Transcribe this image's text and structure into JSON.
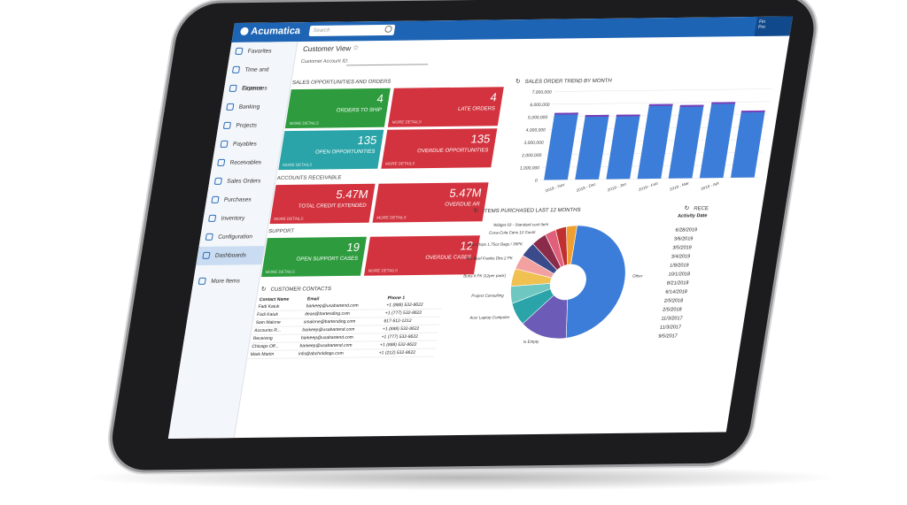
{
  "app": {
    "brand": "Acumatica",
    "search_placeholder": "Search",
    "corner_text_1": "Fin",
    "corner_text_2": "Pro"
  },
  "sidebar": {
    "items": [
      {
        "label": "Favorites"
      },
      {
        "label": "Time and Expenses"
      },
      {
        "label": "Finance"
      },
      {
        "label": "Banking"
      },
      {
        "label": "Projects"
      },
      {
        "label": "Payables"
      },
      {
        "label": "Receivables"
      },
      {
        "label": "Sales Orders"
      },
      {
        "label": "Purchases"
      },
      {
        "label": "Inventory"
      },
      {
        "label": "Configuration"
      },
      {
        "label": "Dashboards"
      },
      {
        "label": "More Items"
      }
    ]
  },
  "page": {
    "title": "Customer View",
    "account_label": "Customer Account ID:"
  },
  "sections": {
    "sales": "SALES OPPORTUNITIES AND ORDERS",
    "ar": "ACCOUNTS RECEIVABLE",
    "support": "SUPPORT",
    "contacts": "CUSTOMER CONTACTS",
    "trend": "SALES ORDER TREND BY MONTH",
    "items": "ITEMS PURCHASED LAST 12 MONTHS",
    "recent": "RECE"
  },
  "tiles": {
    "orders_to_ship": {
      "value": "4",
      "label": "ORDERS TO SHIP",
      "more": "MORE DETAILS"
    },
    "late_orders": {
      "value": "4",
      "label": "LATE ORDERS",
      "more": "MORE DETAILS"
    },
    "open_opps": {
      "value": "135",
      "label": "OPEN OPPORTUNITIES",
      "more": "MORE DETAILS"
    },
    "overdue_opps": {
      "value": "135",
      "label": "OVERDUE OPPORTUNITIES",
      "more": "MORE DETAILS"
    },
    "credit": {
      "value": "5.47M",
      "label": "TOTAL CREDIT EXTENDED",
      "more": "MORE DETAILS"
    },
    "overdue_ar": {
      "value": "5.47M",
      "label": "OVERDUE AR",
      "more": "MORE DETAILS"
    },
    "support_cases": {
      "value": "19",
      "label": "OPEN SUPPORT CASES",
      "more": "MORE DETAILS"
    },
    "overdue_cases": {
      "value": "12",
      "label": "OVERDUE CASES",
      "more": "MORE DETAILS"
    }
  },
  "contacts": {
    "headers": [
      "Contact Name",
      "Email",
      "Phone 1"
    ],
    "rows": [
      [
        "Fadi Katuk",
        "barkeep@usabartend.com",
        "+1 (888) 532-8622"
      ],
      [
        "Fadi Katuk",
        "dean@bartending.com",
        "+1 (777) 532-8622"
      ],
      [
        "Sam Malone",
        "smalone@bartending.com",
        "617-512-1212"
      ],
      [
        "Accounts R...",
        "barkeep@usabartend.com",
        "+1 (888) 532-8622"
      ],
      [
        "Receiving",
        "barkeep@usabartend.com",
        "+1 (777) 532-8622"
      ],
      [
        "Chicago Off...",
        "barkeep@usabartend.com",
        "+1 (888) 532-8622"
      ],
      [
        "Mark Martin",
        "info@abcholdings.com",
        "+1 (212) 532-8622"
      ]
    ]
  },
  "recent": {
    "header": "Activity Date",
    "dates": [
      "6/28/2019",
      "3/6/2019",
      "3/5/2019",
      "3/4/2019",
      "1/9/2019",
      "10/1/2018",
      "8/21/2018",
      "6/14/2018",
      "2/5/2018",
      "2/5/2018",
      "11/3/2017",
      "11/3/2017",
      "9/5/2017"
    ]
  },
  "chart_data": [
    {
      "type": "bar",
      "title": "SALES ORDER TREND BY MONTH",
      "categories": [
        "2019 - Nov",
        "2019 - Dec",
        "2019 - Jan",
        "2019 - Feb",
        "2019 - Mar",
        "2019 - Apr",
        ""
      ],
      "values": [
        5300000,
        5100000,
        5100000,
        5900000,
        5800000,
        6000000,
        5300000
      ],
      "ylim": [
        0,
        7000000
      ],
      "yticks": [
        "0",
        "1,000,000",
        "2,000,000",
        "3,000,000",
        "4,000,000",
        "5,000,000",
        "6,000,000",
        "7,000,000"
      ],
      "color": "#3b7dd8"
    },
    {
      "type": "pie",
      "title": "ITEMS PURCHASED LAST 12 MONTHS",
      "labels": [
        "Other",
        "Is Empty",
        "Acer Laptop Computer",
        "Project Consulting",
        "Hot Dog Buns 8 PK (12per pack)",
        "Ball Park Beef Franks Dbs 2 PK",
        "Wise Potato Chips 1.75oz Bags / 36PK",
        "Coca-Cola Cans 12 Count",
        "Widget 03 - Standard cost Item",
        "",
        ""
      ],
      "values": [
        48,
        14,
        7,
        5,
        5,
        4,
        4,
        4,
        3,
        3,
        3
      ],
      "colors": [
        "#3b7dd8",
        "#6d5bb8",
        "#2aa4a8",
        "#6ec7c0",
        "#f0c050",
        "#f2a0a0",
        "#3a4a8a",
        "#8a2b4a",
        "#e0607a",
        "#c03030",
        "#f0a030"
      ]
    }
  ]
}
